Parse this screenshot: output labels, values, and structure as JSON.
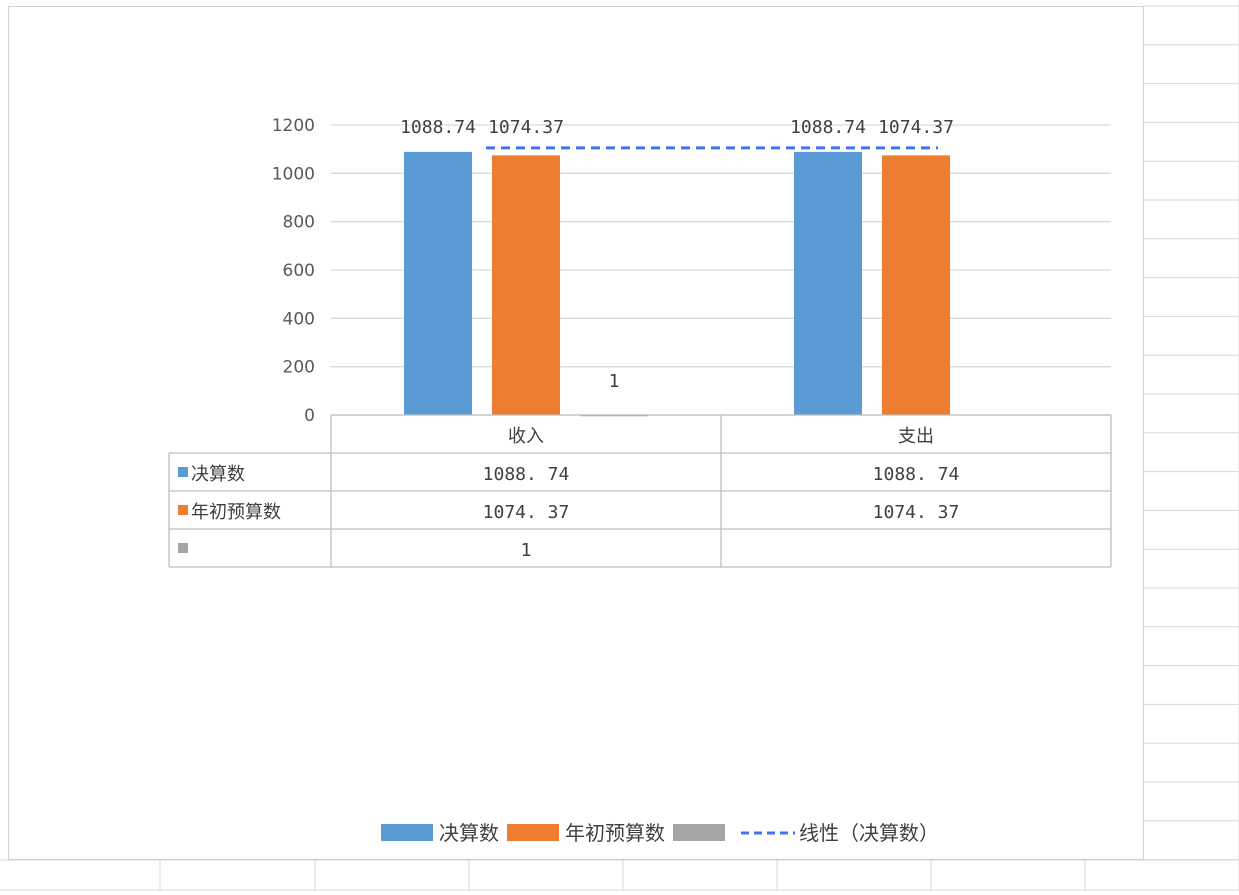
{
  "chart_data": {
    "type": "bar",
    "categories": [
      "收入",
      "支出"
    ],
    "series": [
      {
        "name": "决算数",
        "values": [
          1088.74,
          1088.74
        ],
        "color": "#5b9bd5",
        "labels": [
          "1088.74",
          "1088.74"
        ],
        "table": [
          "1088. 74",
          "1088. 74"
        ]
      },
      {
        "name": "年初预算数",
        "values": [
          1074.37,
          1074.37
        ],
        "color": "#ed7d31",
        "labels": [
          "1074.37",
          "1074.37"
        ],
        "table": [
          "1074. 37",
          "1074. 37"
        ]
      },
      {
        "name": "",
        "values": [
          1,
          null
        ],
        "color": "#a5a5a5",
        "labels": [
          "1",
          ""
        ],
        "table": [
          "1",
          ""
        ]
      }
    ],
    "data_labels": {
      "s0": [
        "1088. 74",
        "1088. 74"
      ],
      "s1": [
        "1074. 37",
        "1074. 37"
      ],
      "s2": [
        "1",
        ""
      ]
    },
    "trendline": {
      "name": "线性（决算数）",
      "legend_text": "线性（决算数）",
      "series": "决算数",
      "type": "linear",
      "color": "#4472f0"
    },
    "yticks": [
      "0",
      "200",
      "400",
      "600",
      "800",
      "1000",
      "1200"
    ],
    "ylim": [
      0,
      1200
    ],
    "grid": true,
    "legend_position": "bottom",
    "data_table": true
  }
}
